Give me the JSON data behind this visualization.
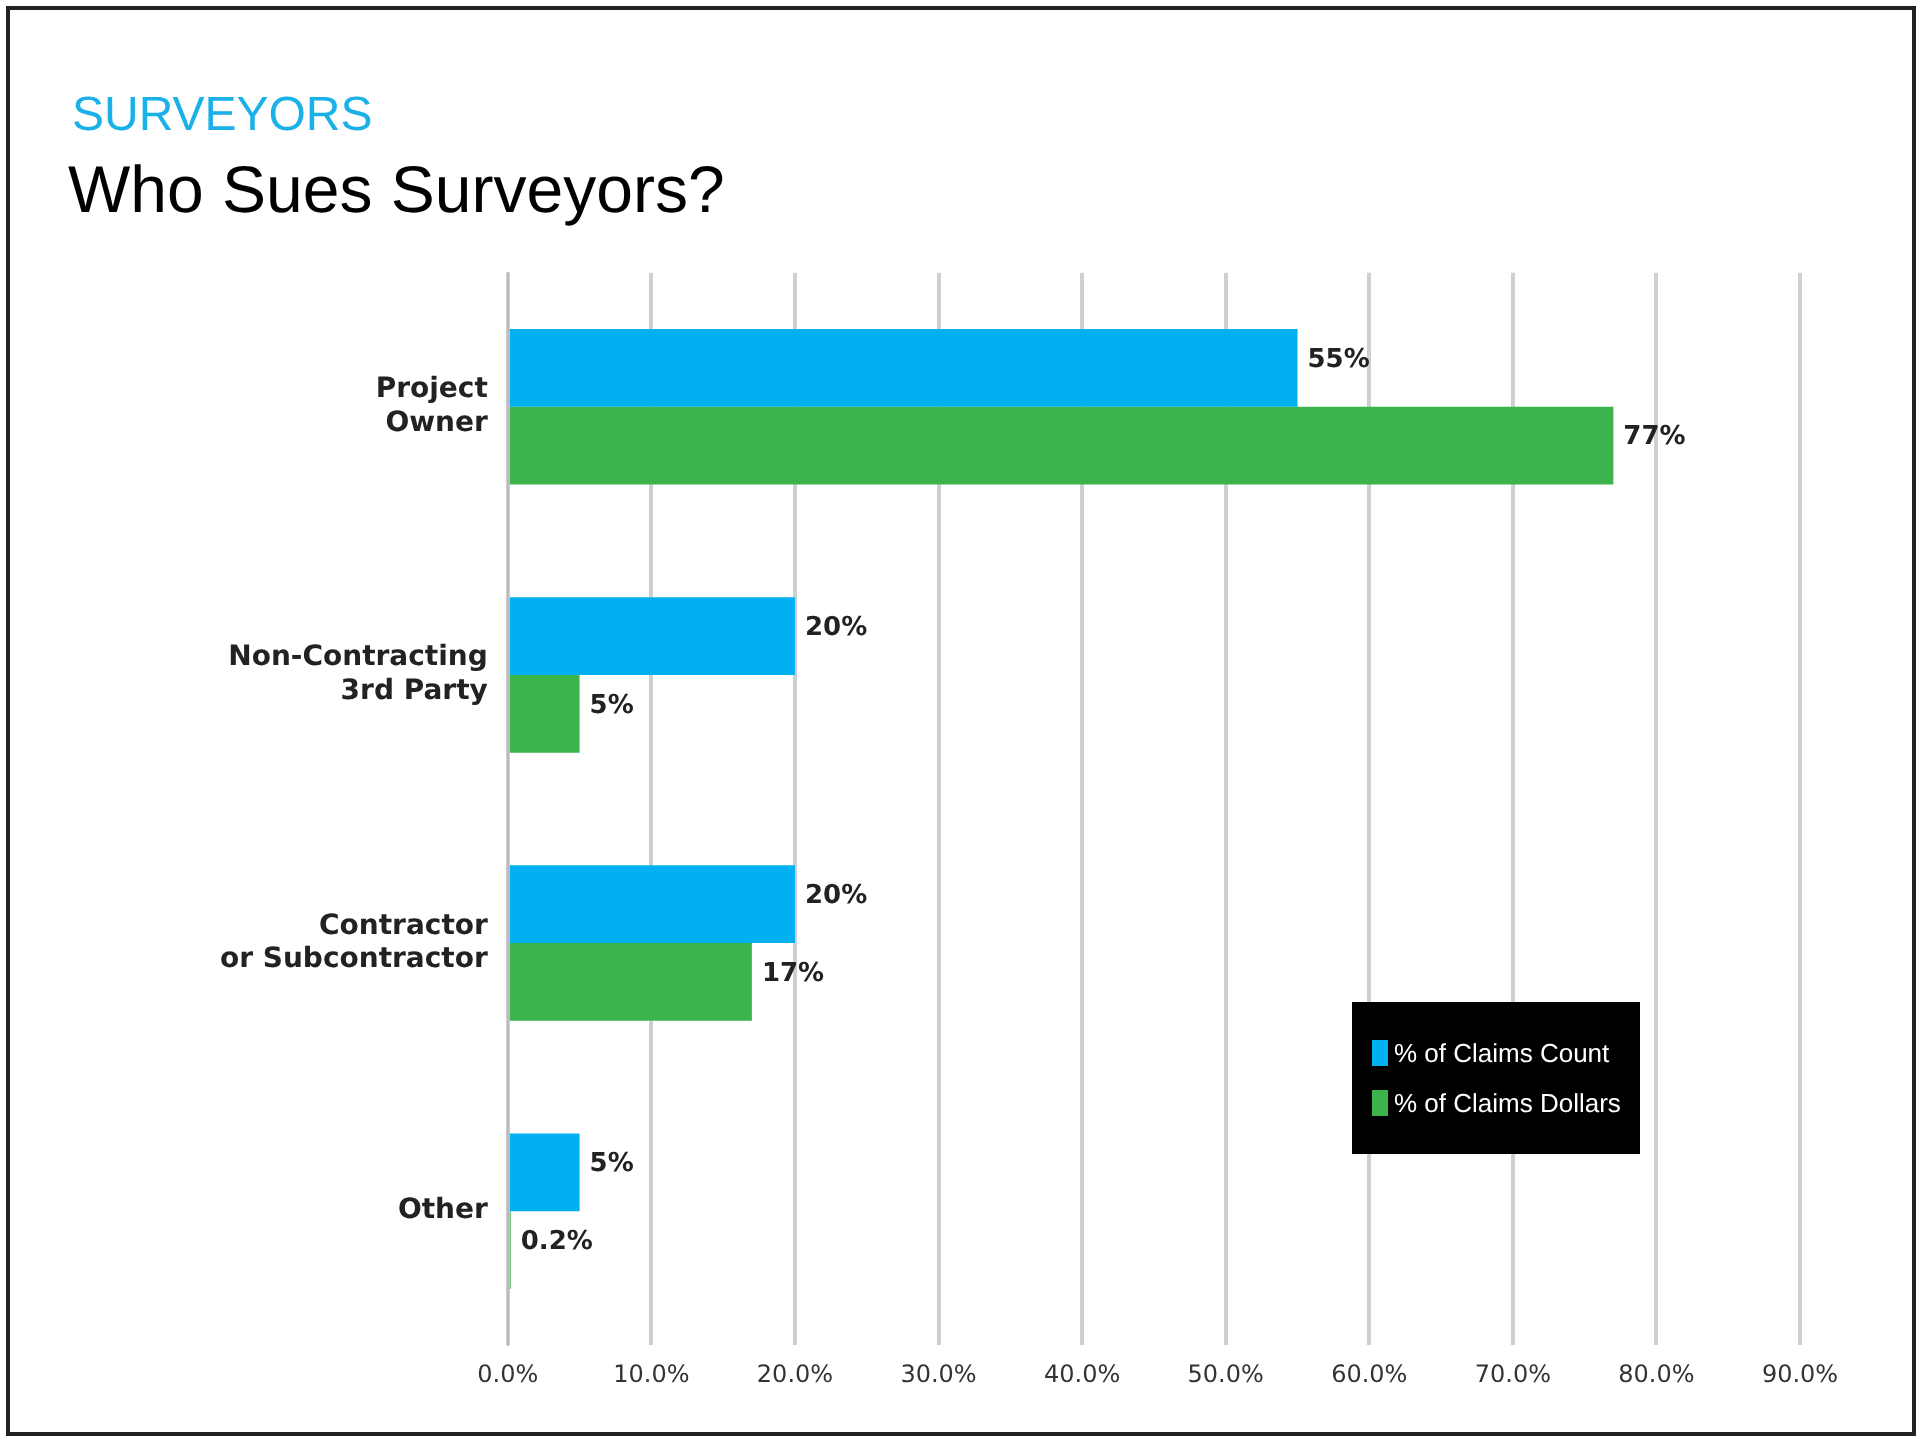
{
  "chart_data": {
    "type": "bar",
    "orientation": "horizontal",
    "subtitle": "SURVEYORS",
    "title": "Who Sues Surveyors?",
    "categories": [
      "Project\nOwner",
      "Non-Contracting\n3rd Party",
      "Contractor\nor Subcontractor",
      "Other"
    ],
    "series": [
      {
        "name": "% of Claims Count",
        "color": "#00b0f0",
        "values": [
          55,
          20,
          20,
          5
        ],
        "value_labels": [
          "55%",
          "20%",
          "20%",
          "5%"
        ]
      },
      {
        "name": "% of Claims Dollars",
        "color": "#3cb44b",
        "values": [
          77,
          5,
          17,
          0.2
        ],
        "value_labels": [
          "77%",
          "5%",
          "17%",
          "0.2%"
        ]
      }
    ],
    "xlim": [
      0,
      90
    ],
    "xticks": [
      {
        "value": 0,
        "label": "0.0%"
      },
      {
        "value": 10,
        "label": "10.0%"
      },
      {
        "value": 20,
        "label": "20.0%"
      },
      {
        "value": 30,
        "label": "30.0%"
      },
      {
        "value": 40,
        "label": "40.0%"
      },
      {
        "value": 50,
        "label": "50.0%"
      },
      {
        "value": 60,
        "label": "60.0%"
      },
      {
        "value": 70,
        "label": "70.0%"
      },
      {
        "value": 80,
        "label": "80.0%"
      },
      {
        "value": 90,
        "label": "90.0%"
      }
    ],
    "grid": "x",
    "legend": "bottom right"
  }
}
